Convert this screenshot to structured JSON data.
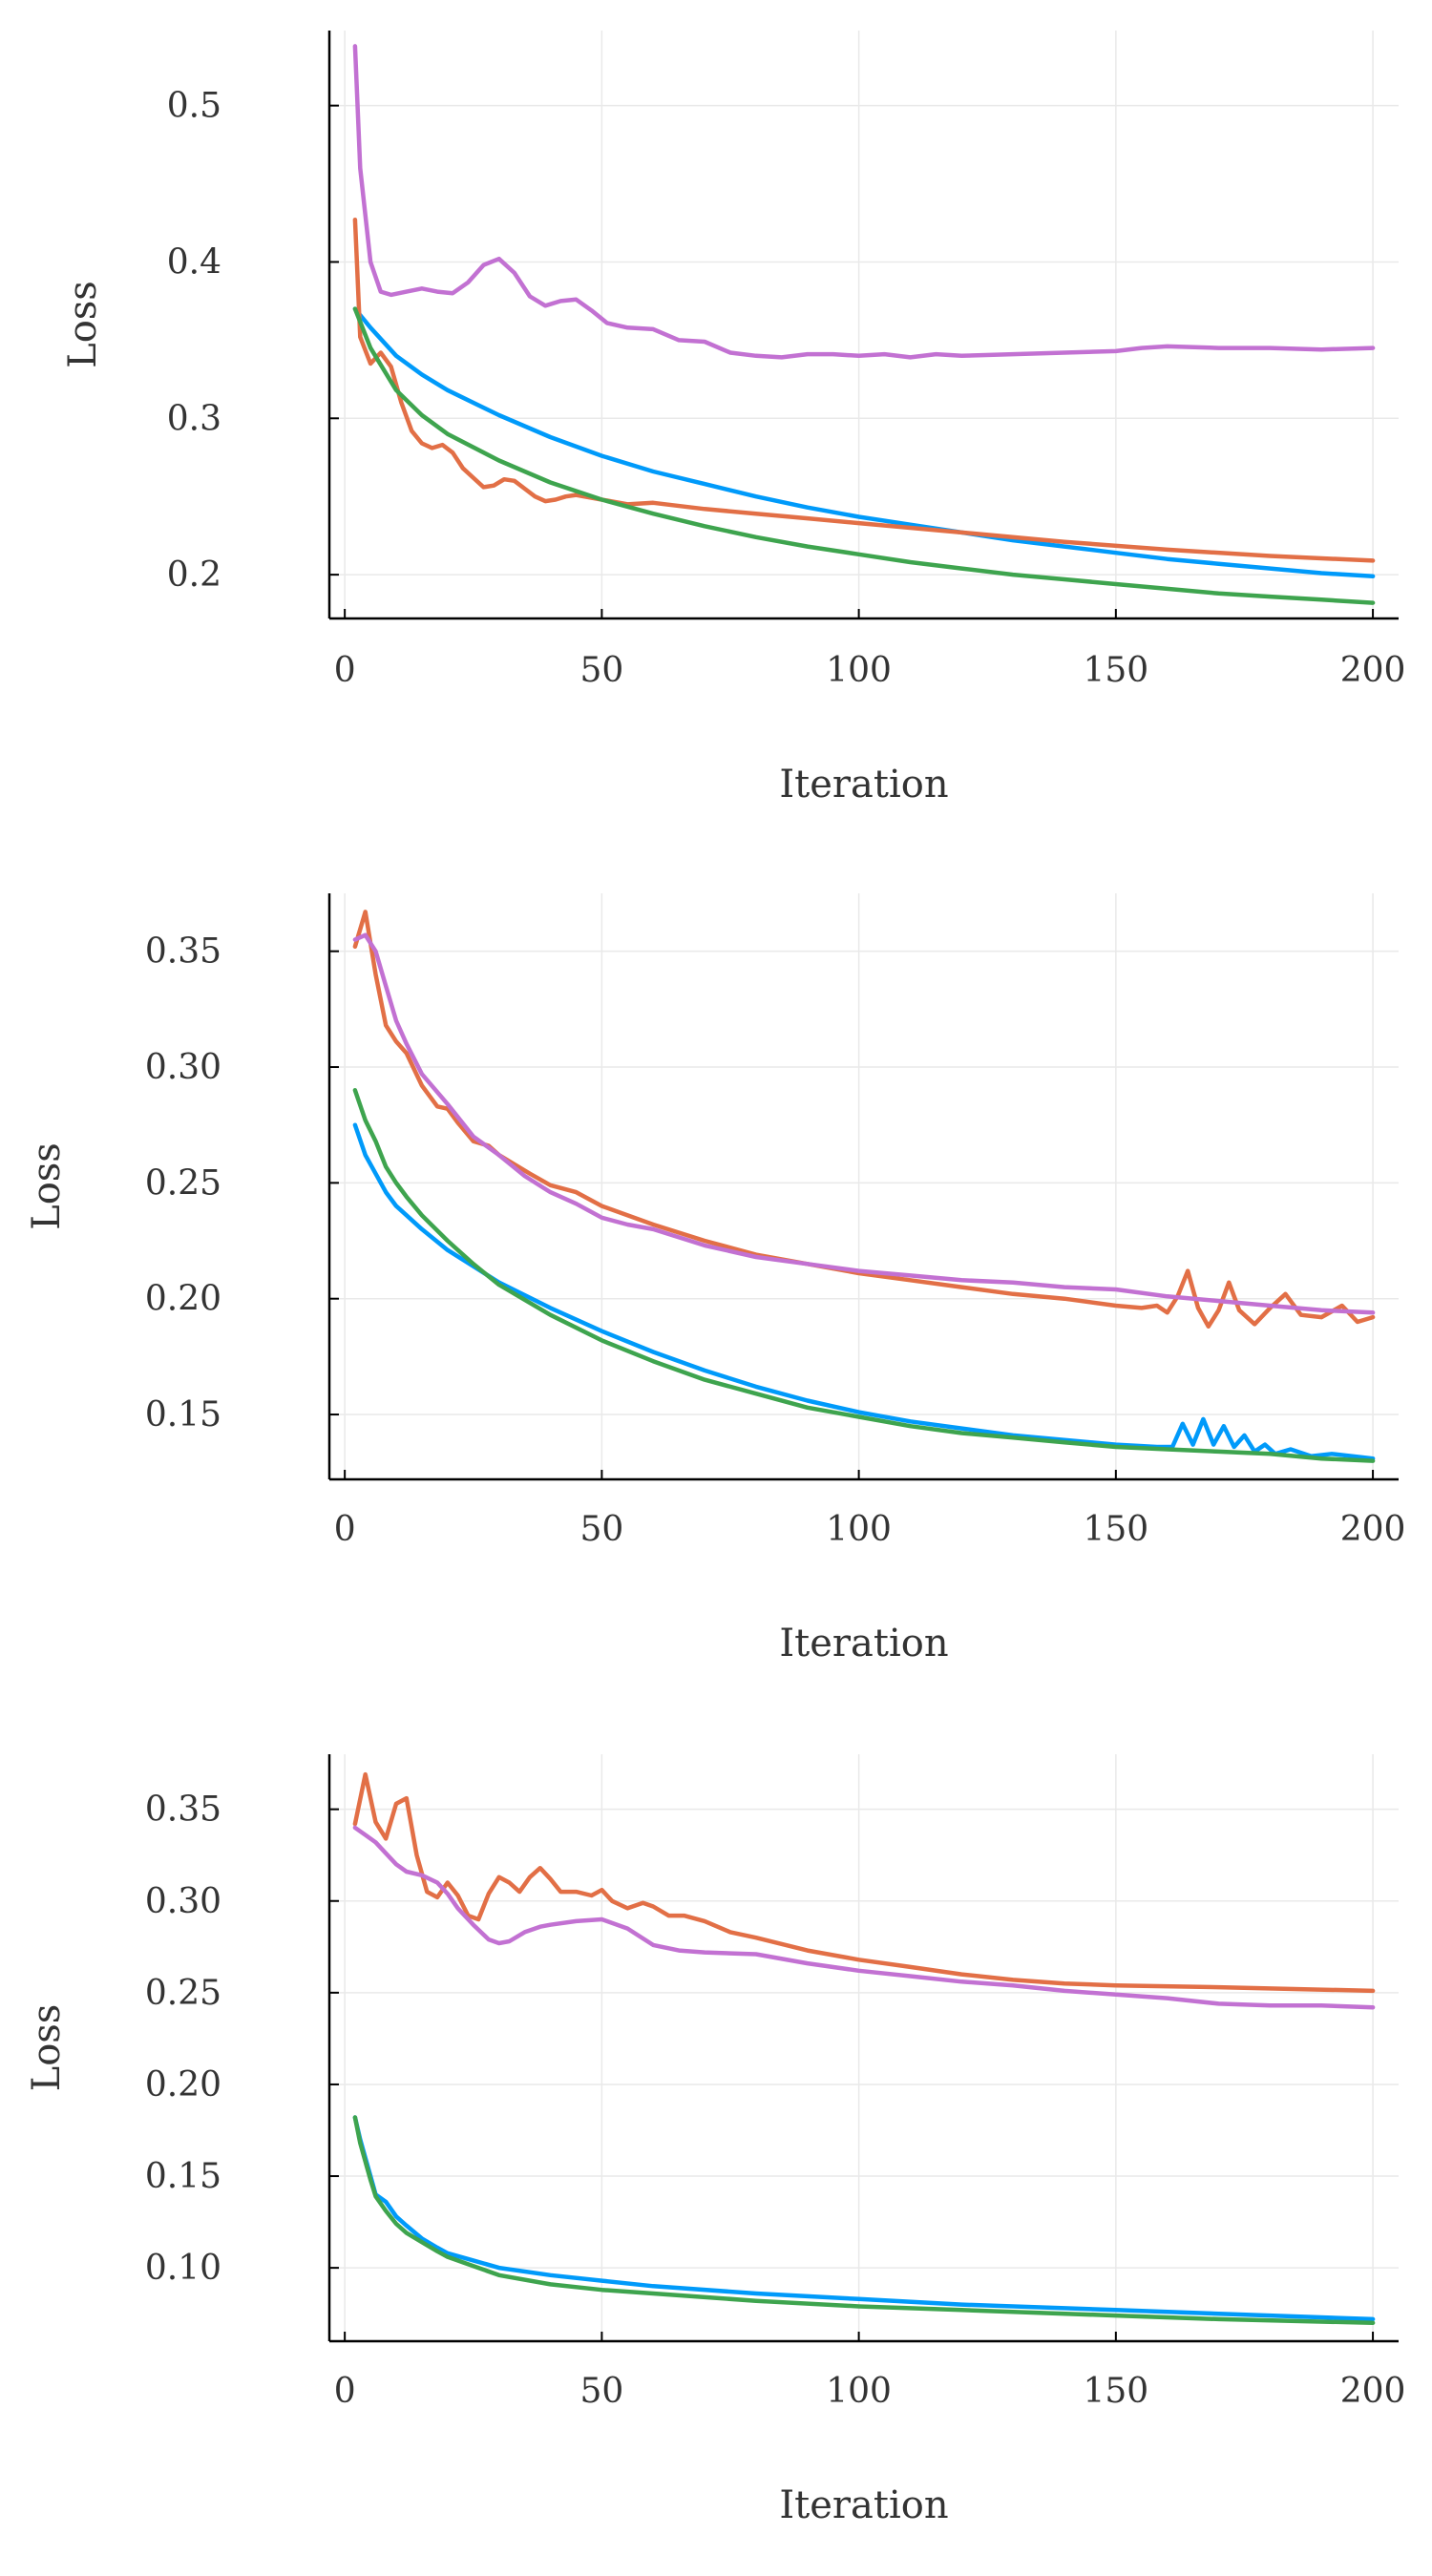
{
  "figure": {
    "series_colors": [
      "#009AFA",
      "#E26F46",
      "#3EA44E",
      "#C271D2"
    ]
  },
  "chart_data": [
    {
      "type": "line",
      "xlabel": "Iteration",
      "ylabel": "Loss",
      "xlim": [
        -3,
        205
      ],
      "ylim": [
        0.172,
        0.548
      ],
      "xticks": [
        0,
        50,
        100,
        150,
        200
      ],
      "xtick_labels": [
        "0",
        "50",
        "100",
        "150",
        "200"
      ],
      "yticks": [
        0.2,
        0.3,
        0.4,
        0.5
      ],
      "ytick_labels": [
        "0.2",
        "0.3",
        "0.4",
        "0.5"
      ],
      "grid": true,
      "legend": "none",
      "series": [
        {
          "color": "#009AFA",
          "x": [
            2,
            5,
            10,
            15,
            20,
            30,
            40,
            50,
            60,
            70,
            80,
            90,
            100,
            110,
            120,
            130,
            140,
            150,
            160,
            170,
            180,
            190,
            200
          ],
          "y": [
            0.37,
            0.358,
            0.34,
            0.328,
            0.318,
            0.302,
            0.288,
            0.276,
            0.266,
            0.258,
            0.25,
            0.243,
            0.237,
            0.232,
            0.227,
            0.222,
            0.218,
            0.214,
            0.21,
            0.207,
            0.204,
            0.201,
            0.199
          ]
        },
        {
          "color": "#E26F46",
          "x": [
            2,
            3,
            5,
            7,
            9,
            11,
            13,
            15,
            17,
            19,
            21,
            23,
            25,
            27,
            29,
            31,
            33,
            35,
            37,
            39,
            41,
            43,
            45,
            50,
            55,
            60,
            70,
            80,
            90,
            100,
            120,
            140,
            160,
            180,
            200
          ],
          "y": [
            0.427,
            0.352,
            0.335,
            0.342,
            0.333,
            0.31,
            0.292,
            0.284,
            0.281,
            0.283,
            0.278,
            0.268,
            0.262,
            0.256,
            0.257,
            0.261,
            0.26,
            0.255,
            0.25,
            0.247,
            0.248,
            0.25,
            0.251,
            0.248,
            0.245,
            0.246,
            0.242,
            0.239,
            0.236,
            0.233,
            0.227,
            0.221,
            0.216,
            0.212,
            0.209
          ]
        },
        {
          "color": "#3EA44E",
          "x": [
            2,
            5,
            10,
            15,
            20,
            30,
            40,
            50,
            60,
            70,
            80,
            90,
            100,
            110,
            120,
            130,
            140,
            150,
            160,
            170,
            180,
            190,
            200
          ],
          "y": [
            0.37,
            0.345,
            0.318,
            0.302,
            0.29,
            0.273,
            0.259,
            0.248,
            0.239,
            0.231,
            0.224,
            0.218,
            0.213,
            0.208,
            0.204,
            0.2,
            0.197,
            0.194,
            0.191,
            0.188,
            0.186,
            0.184,
            0.182
          ]
        },
        {
          "color": "#C271D2",
          "x": [
            2,
            3,
            5,
            7,
            9,
            12,
            15,
            18,
            21,
            24,
            27,
            30,
            33,
            36,
            39,
            42,
            45,
            48,
            51,
            55,
            60,
            65,
            70,
            75,
            80,
            85,
            90,
            95,
            100,
            105,
            110,
            115,
            120,
            130,
            140,
            150,
            155,
            160,
            170,
            180,
            190,
            200
          ],
          "y": [
            0.538,
            0.46,
            0.4,
            0.381,
            0.379,
            0.381,
            0.383,
            0.381,
            0.38,
            0.387,
            0.398,
            0.402,
            0.393,
            0.378,
            0.372,
            0.375,
            0.376,
            0.369,
            0.361,
            0.358,
            0.357,
            0.35,
            0.349,
            0.342,
            0.34,
            0.339,
            0.341,
            0.341,
            0.34,
            0.341,
            0.339,
            0.341,
            0.34,
            0.341,
            0.342,
            0.343,
            0.345,
            0.346,
            0.345,
            0.345,
            0.344,
            0.345
          ]
        }
      ]
    },
    {
      "type": "line",
      "xlabel": "Iteration",
      "ylabel": "Loss",
      "xlim": [
        -3,
        205
      ],
      "ylim": [
        0.122,
        0.375
      ],
      "xticks": [
        0,
        50,
        100,
        150,
        200
      ],
      "xtick_labels": [
        "0",
        "50",
        "100",
        "150",
        "200"
      ],
      "yticks": [
        0.15,
        0.2,
        0.25,
        0.3,
        0.35
      ],
      "ytick_labels": [
        "0.15",
        "0.20",
        "0.25",
        "0.30",
        "0.35"
      ],
      "grid": true,
      "legend": "none",
      "series": [
        {
          "color": "#009AFA",
          "x": [
            2,
            4,
            6,
            8,
            10,
            12,
            15,
            20,
            25,
            30,
            40,
            50,
            60,
            70,
            80,
            90,
            100,
            110,
            120,
            130,
            140,
            150,
            158,
            161,
            163,
            165,
            167,
            169,
            171,
            173,
            175,
            177,
            179,
            181,
            184,
            188,
            192,
            196,
            200
          ],
          "y": [
            0.275,
            0.262,
            0.254,
            0.246,
            0.24,
            0.236,
            0.23,
            0.221,
            0.214,
            0.207,
            0.196,
            0.186,
            0.177,
            0.169,
            0.162,
            0.156,
            0.151,
            0.147,
            0.144,
            0.141,
            0.139,
            0.137,
            0.136,
            0.136,
            0.146,
            0.137,
            0.148,
            0.137,
            0.145,
            0.136,
            0.141,
            0.134,
            0.137,
            0.133,
            0.135,
            0.132,
            0.133,
            0.132,
            0.131
          ]
        },
        {
          "color": "#E26F46",
          "x": [
            2,
            4,
            6,
            8,
            10,
            12,
            15,
            18,
            20,
            22,
            25,
            28,
            30,
            33,
            36,
            40,
            45,
            50,
            60,
            70,
            80,
            90,
            100,
            110,
            120,
            130,
            140,
            150,
            155,
            158,
            160,
            162,
            164,
            166,
            168,
            170,
            172,
            174,
            177,
            180,
            183,
            186,
            190,
            194,
            197,
            200
          ],
          "y": [
            0.352,
            0.367,
            0.34,
            0.318,
            0.311,
            0.306,
            0.292,
            0.283,
            0.282,
            0.276,
            0.268,
            0.266,
            0.262,
            0.258,
            0.254,
            0.249,
            0.246,
            0.24,
            0.232,
            0.225,
            0.219,
            0.215,
            0.211,
            0.208,
            0.205,
            0.202,
            0.2,
            0.197,
            0.196,
            0.197,
            0.194,
            0.201,
            0.212,
            0.196,
            0.188,
            0.195,
            0.207,
            0.195,
            0.189,
            0.196,
            0.202,
            0.193,
            0.192,
            0.197,
            0.19,
            0.192
          ]
        },
        {
          "color": "#3EA44E",
          "x": [
            2,
            4,
            6,
            8,
            10,
            12,
            15,
            20,
            25,
            30,
            40,
            50,
            60,
            70,
            80,
            90,
            100,
            110,
            120,
            130,
            140,
            150,
            160,
            170,
            180,
            190,
            200
          ],
          "y": [
            0.29,
            0.277,
            0.268,
            0.257,
            0.25,
            0.244,
            0.236,
            0.225,
            0.215,
            0.206,
            0.193,
            0.182,
            0.173,
            0.165,
            0.159,
            0.153,
            0.149,
            0.145,
            0.142,
            0.14,
            0.138,
            0.136,
            0.135,
            0.134,
            0.133,
            0.131,
            0.13
          ]
        },
        {
          "color": "#C271D2",
          "x": [
            2,
            4,
            6,
            8,
            10,
            12,
            15,
            20,
            25,
            30,
            35,
            40,
            45,
            50,
            55,
            60,
            70,
            80,
            90,
            100,
            110,
            120,
            130,
            140,
            150,
            160,
            170,
            180,
            190,
            200
          ],
          "y": [
            0.355,
            0.357,
            0.35,
            0.335,
            0.32,
            0.31,
            0.297,
            0.284,
            0.27,
            0.262,
            0.253,
            0.246,
            0.241,
            0.235,
            0.232,
            0.23,
            0.223,
            0.218,
            0.215,
            0.212,
            0.21,
            0.208,
            0.207,
            0.205,
            0.204,
            0.201,
            0.199,
            0.197,
            0.195,
            0.194
          ]
        }
      ]
    },
    {
      "type": "line",
      "xlabel": "Iteration",
      "ylabel": "Loss",
      "xlim": [
        -3,
        205
      ],
      "ylim": [
        0.06,
        0.38
      ],
      "xticks": [
        0,
        50,
        100,
        150,
        200
      ],
      "xtick_labels": [
        "0",
        "50",
        "100",
        "150",
        "200"
      ],
      "yticks": [
        0.1,
        0.15,
        0.2,
        0.25,
        0.3,
        0.35
      ],
      "ytick_labels": [
        "0.10",
        "0.15",
        "0.20",
        "0.25",
        "0.30",
        "0.35"
      ],
      "grid": true,
      "legend": "none",
      "series": [
        {
          "color": "#009AFA",
          "x": [
            2,
            3,
            4,
            5,
            6,
            8,
            10,
            12,
            15,
            18,
            20,
            25,
            30,
            40,
            50,
            60,
            80,
            100,
            120,
            150,
            170,
            200
          ],
          "y": [
            0.182,
            0.17,
            0.16,
            0.15,
            0.14,
            0.136,
            0.128,
            0.123,
            0.116,
            0.111,
            0.108,
            0.104,
            0.1,
            0.096,
            0.093,
            0.09,
            0.086,
            0.083,
            0.08,
            0.077,
            0.075,
            0.072
          ]
        },
        {
          "color": "#E26F46",
          "x": [
            2,
            4,
            6,
            8,
            10,
            12,
            14,
            16,
            18,
            20,
            22,
            24,
            26,
            28,
            30,
            32,
            34,
            36,
            38,
            40,
            42,
            45,
            48,
            50,
            52,
            55,
            58,
            60,
            63,
            66,
            70,
            75,
            80,
            90,
            100,
            110,
            120,
            130,
            140,
            150,
            170,
            200
          ],
          "y": [
            0.342,
            0.369,
            0.343,
            0.334,
            0.353,
            0.356,
            0.325,
            0.305,
            0.302,
            0.31,
            0.303,
            0.292,
            0.29,
            0.304,
            0.313,
            0.31,
            0.305,
            0.313,
            0.318,
            0.312,
            0.305,
            0.305,
            0.303,
            0.306,
            0.3,
            0.296,
            0.299,
            0.297,
            0.292,
            0.292,
            0.289,
            0.283,
            0.28,
            0.273,
            0.268,
            0.264,
            0.26,
            0.257,
            0.255,
            0.254,
            0.253,
            0.251
          ]
        },
        {
          "color": "#3EA44E",
          "x": [
            2,
            3,
            4,
            5,
            6,
            8,
            10,
            12,
            15,
            18,
            20,
            25,
            30,
            40,
            50,
            60,
            80,
            100,
            120,
            150,
            170,
            200
          ],
          "y": [
            0.182,
            0.168,
            0.158,
            0.148,
            0.139,
            0.131,
            0.124,
            0.119,
            0.114,
            0.109,
            0.106,
            0.101,
            0.096,
            0.091,
            0.088,
            0.086,
            0.082,
            0.079,
            0.077,
            0.074,
            0.072,
            0.07
          ]
        },
        {
          "color": "#C271D2",
          "x": [
            2,
            4,
            6,
            8,
            10,
            12,
            15,
            18,
            20,
            22,
            25,
            28,
            30,
            32,
            35,
            38,
            40,
            45,
            50,
            55,
            60,
            65,
            70,
            80,
            90,
            100,
            110,
            120,
            130,
            140,
            150,
            160,
            170,
            180,
            190,
            200
          ],
          "y": [
            0.34,
            0.336,
            0.332,
            0.326,
            0.32,
            0.316,
            0.314,
            0.31,
            0.304,
            0.296,
            0.287,
            0.279,
            0.277,
            0.278,
            0.283,
            0.286,
            0.287,
            0.289,
            0.29,
            0.285,
            0.276,
            0.273,
            0.272,
            0.271,
            0.266,
            0.262,
            0.259,
            0.256,
            0.254,
            0.251,
            0.249,
            0.247,
            0.244,
            0.243,
            0.243,
            0.242
          ]
        }
      ]
    }
  ]
}
